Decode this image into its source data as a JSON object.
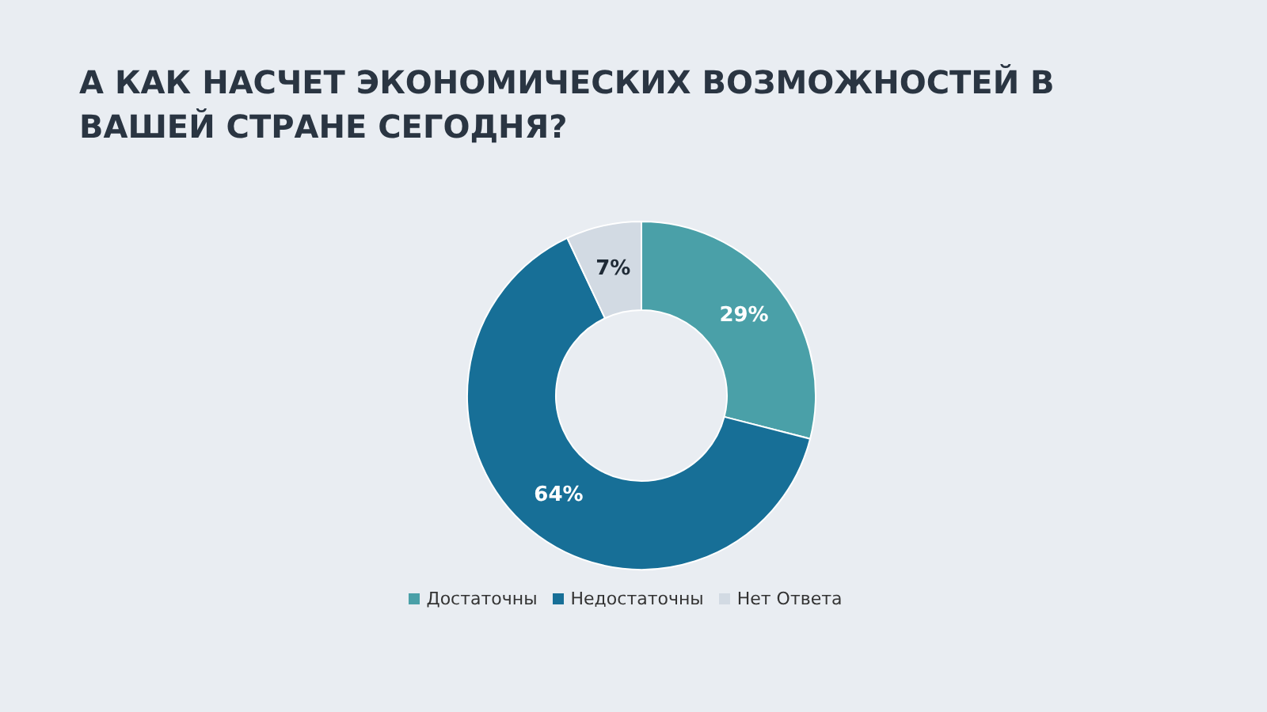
{
  "chart_data": {
    "type": "donut",
    "title": "А КАК НАСЧЕТ ЭКОНОМИЧЕСКИХ ВОЗМОЖНОСТЕЙ В ВАШЕЙ СТРАНЕ СЕГОДНЯ?",
    "categories": [
      "Достаточны",
      "Недостаточны",
      "Нет Ответа"
    ],
    "values": [
      29,
      64,
      7
    ],
    "colors": [
      "#4aa0a8",
      "#176f97",
      "#d2dae3"
    ],
    "value_labels": [
      "29%",
      "64%",
      "7%"
    ],
    "legend": "bottom"
  }
}
